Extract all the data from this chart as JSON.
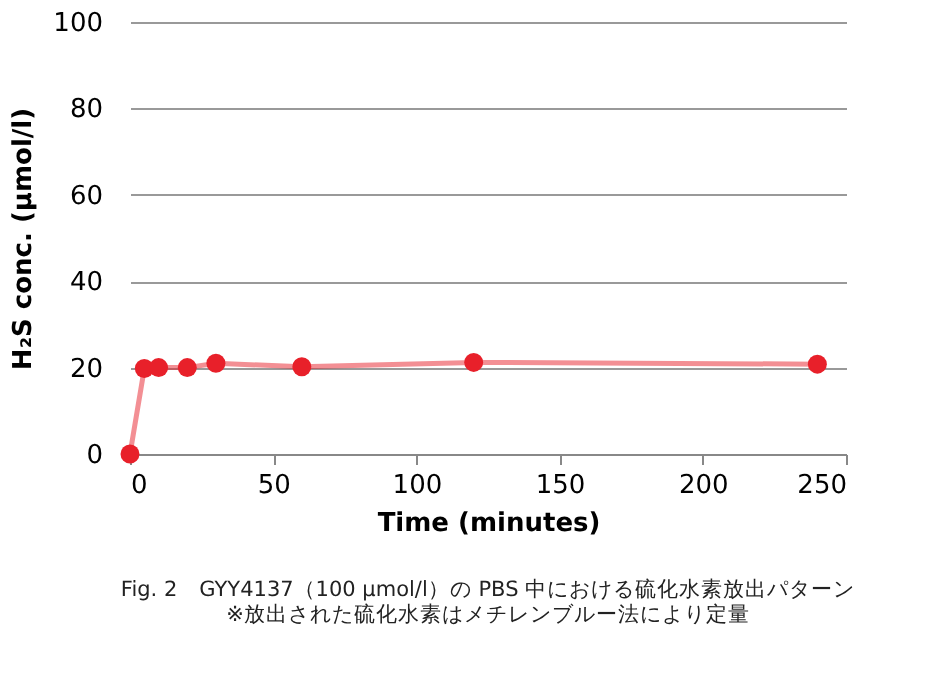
{
  "chart_data": {
    "type": "line",
    "xlabel": "Time (minutes)",
    "ylabel": "H₂S conc. (μmol/l)",
    "x": [
      0,
      5,
      10,
      20,
      30,
      60,
      120,
      240
    ],
    "series": [
      {
        "color": "#e8202a",
        "values": [
          0,
          19.8,
          20,
          20,
          21,
          20.2,
          21.2,
          20.8
        ]
      }
    ],
    "xlim": [
      0,
      250
    ],
    "xticks": [
      0,
      50,
      100,
      150,
      200,
      250
    ],
    "ylim": [
      0,
      100
    ],
    "yticks": [
      0,
      20,
      40,
      60,
      80,
      100
    ],
    "grid": "y",
    "marker": "circle",
    "line_style": "solid",
    "annotations": [
      "Fig. 2　GYY4137（100 μmol/l）の PBS 中における硫化水素放出パターン",
      "※放出された硫化水素はメチレンブルー法により定量"
    ]
  }
}
